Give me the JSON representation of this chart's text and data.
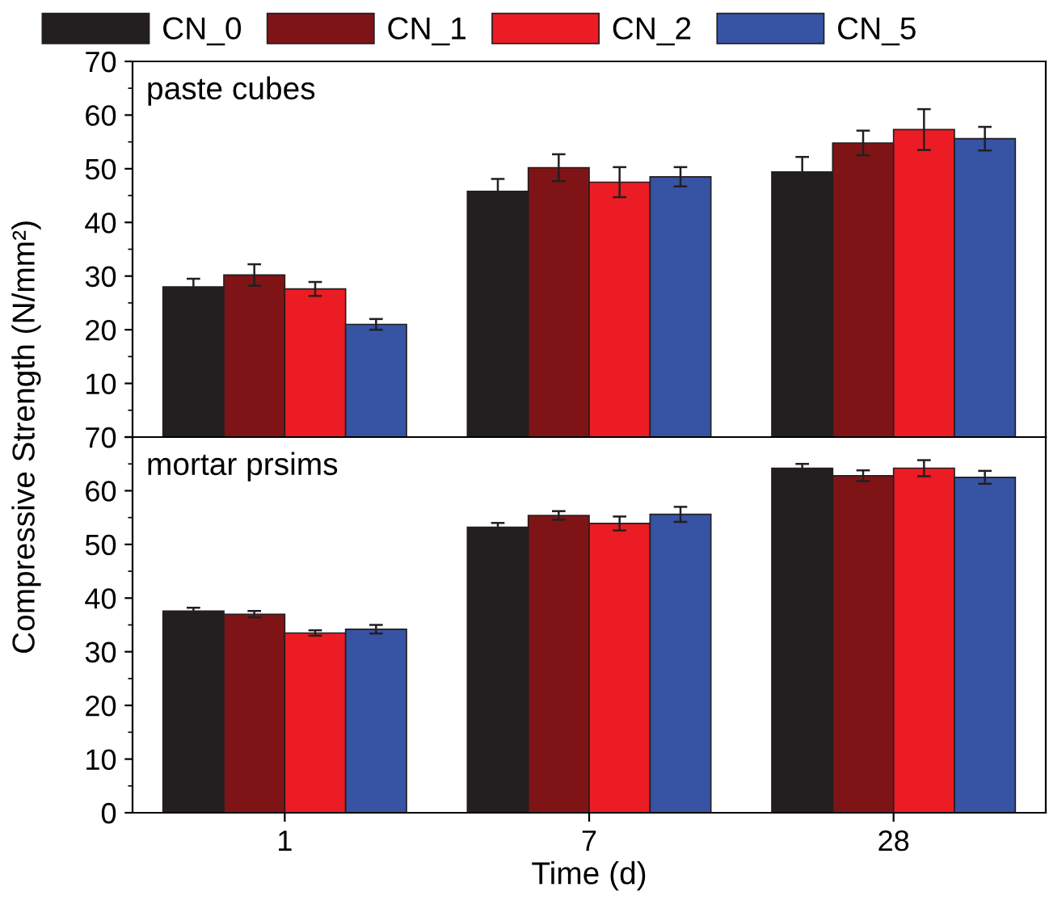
{
  "chart_data": [
    {
      "type": "bar",
      "categories": [
        "1",
        "7",
        "28"
      ],
      "annotations": [
        "paste cubes"
      ],
      "ylim": [
        0,
        70
      ],
      "yticks": [
        {
          "value": 0,
          "label": null
        },
        10,
        20,
        30,
        40,
        50,
        60,
        70
      ],
      "tick_labels": "y",
      "legend": "top",
      "grid": false,
      "series": [
        {
          "name": "CN_0",
          "color": "#231f20",
          "values": [
            28.0,
            45.8,
            49.4
          ],
          "errors": [
            1.5,
            2.3,
            2.8
          ]
        },
        {
          "name": "CN_1",
          "color": "#7f1416",
          "values": [
            30.2,
            50.2,
            54.8
          ],
          "errors": [
            2.0,
            2.5,
            2.3
          ]
        },
        {
          "name": "CN_2",
          "color": "#ec1c24",
          "values": [
            27.6,
            47.5,
            57.3
          ],
          "errors": [
            1.3,
            2.8,
            3.8
          ]
        },
        {
          "name": "CN_5",
          "color": "#3753a4",
          "values": [
            21.0,
            48.5,
            55.6
          ],
          "errors": [
            1.0,
            1.8,
            2.2
          ]
        }
      ]
    },
    {
      "type": "bar",
      "categories": [
        "1",
        "7",
        "28"
      ],
      "annotations": [
        "mortar prsims"
      ],
      "xlabel": "Time (d)",
      "ylabel": "Compressive Strength (N/mm²)",
      "ylim": [
        0,
        70
      ],
      "yticks": [
        0,
        10,
        20,
        30,
        40,
        50,
        60,
        70
      ],
      "grid": false,
      "series": [
        {
          "color": "#231f20",
          "values": [
            37.6,
            53.2,
            64.2
          ],
          "errors": [
            0.6,
            0.8,
            0.8
          ]
        },
        {
          "color": "#7f1416",
          "values": [
            37.0,
            55.4,
            62.8
          ],
          "errors": [
            0.6,
            0.8,
            1.0
          ]
        },
        {
          "color": "#ec1c24",
          "values": [
            33.5,
            53.9,
            64.2
          ],
          "errors": [
            0.5,
            1.3,
            1.5
          ]
        },
        {
          "color": "#3753a4",
          "values": [
            34.2,
            55.6,
            62.5
          ],
          "errors": [
            0.8,
            1.4,
            1.2
          ]
        }
      ]
    }
  ]
}
